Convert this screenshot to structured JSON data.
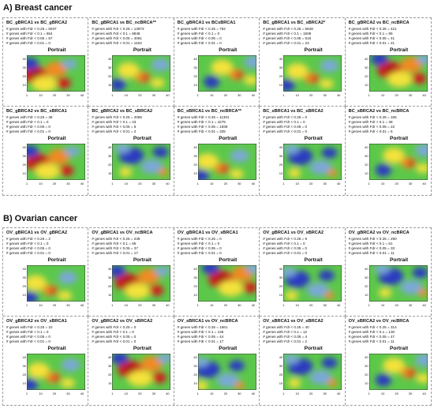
{
  "sections": [
    {
      "title": "A) Breast cancer",
      "panels": [
        {
          "title": "BC_gBRCA1 vs BC_gBRCA2",
          "stats": [
            "# genes with Fdr < 0.25 = 5037",
            "# genes with Fdr < 0.1 = 654",
            "# genes with Fdr < 0.05 = 57",
            "# genes with Fdr < 0.01 = 0"
          ],
          "label": "Portrait",
          "palette": "hot"
        },
        {
          "title": "BC_gBRCA1 vs BC_ncBRCA**",
          "stats": [
            "# genes with Fdr < 0.25 = 13973",
            "# genes with Fdr < 0.1 = 8848",
            "# genes with Fdr < 0.05 = 4061",
            "# genes with Fdr < 0.01 = 1153"
          ],
          "label": "Portrait",
          "palette": "green"
        },
        {
          "title": "BC_gBRCA1 vs BCsBRCA1",
          "stats": [
            "# genes with Fdr < 0.25 = 762",
            "# genes with Fdr < 0.1 = 0",
            "# genes with Fdr < 0.05 = 0",
            "# genes with Fdr < 0.01 = 0"
          ],
          "label": "Portrait",
          "palette": "green"
        },
        {
          "title": "BC_gBRCA1 vs BC_sBRCA2*",
          "stats": [
            "# genes with Fdr < 0.25 = 5648",
            "# genes with Fdr < 0.1 = 1509",
            "# genes with Fdr < 0.05 = 515",
            "# genes with Fdr < 0.01 = 23"
          ],
          "label": "Portrait",
          "palette": "green"
        },
        {
          "title": "BC_gBRCA2 vs BC_ncBRCA",
          "stats": [
            "# genes with Fdr < 0.25 = 421",
            "# genes with Fdr < 0.1 = 95",
            "# genes with Fdr < 0.05 = 41",
            "# genes with Fdr < 0.01 = 21"
          ],
          "label": "Portrait",
          "palette": "hot"
        },
        {
          "title": "BC_gBRCA2 vs BC_sBRCA1",
          "stats": [
            "# genes with Fdr < 0.25 = 36",
            "# genes with Fdr < 0.1 = 0",
            "# genes with Fdr < 0.05 = 0",
            "# genes with Fdr < 0.01 = 0"
          ],
          "label": "Portrait",
          "palette": "hot"
        },
        {
          "title": "BC_gBRCA2 vs BC_sBRCA2",
          "stats": [
            "# genes with Fdr < 0.25 = 2065",
            "# genes with Fdr < 0.1 = 43",
            "# genes with Fdr < 0.05 = 6",
            "# genes with Fdr < 0.01 = 2"
          ],
          "label": "Portrait",
          "palette": "cool"
        },
        {
          "title": "BC_sBRCA1 vs BC_ncBRCA**",
          "stats": [
            "# genes with Fdr < 0.25 = 11301",
            "# genes with Fdr < 0.1 = 4275",
            "# genes with Fdr < 0.05 = 1939",
            "# genes with Fdr < 0.01 = 325"
          ],
          "label": "Portrait",
          "palette": "green"
        },
        {
          "title": "BC_sBRCA1 vs BC_sBRCA2",
          "stats": [
            "# genes with Fdr < 0.25 = 0",
            "# genes with Fdr < 0.1 = 0",
            "# genes with Fdr < 0.05 = 0",
            "# genes with Fdr < 0.01 = 0"
          ],
          "label": "Portrait",
          "palette": "cool"
        },
        {
          "title": "BC_sBRCA2 vs BC_ncBRCA",
          "stats": [
            "# genes with Fdr < 0.25 = 165",
            "# genes with Fdr < 0.1 = 38",
            "# genes with Fdr < 0.05 = 22",
            "# genes with Fdr < 0.01 = 6"
          ],
          "label": "Portrait",
          "palette": "green"
        }
      ]
    },
    {
      "title": "B) Ovarian cancer",
      "panels": [
        {
          "title": "OV_gBRCA1 vs OV_gBRCA2",
          "stats": [
            "# genes with Fdr < 0.25 = 2",
            "# genes with Fdr < 0.1 = 0",
            "# genes with Fdr < 0.05 = 0",
            "# genes with Fdr < 0.01 = 0"
          ],
          "label": "Portrait",
          "palette": "green"
        },
        {
          "title": "OV_gBRCA1 vs OV_ncBRCA",
          "stats": [
            "# genes with Fdr < 0.25 = 239",
            "# genes with Fdr < 0.1 = 65",
            "# genes with Fdr < 0.05 = 37",
            "# genes with Fdr < 0.01 = 17"
          ],
          "label": "Portrait",
          "palette": "hot"
        },
        {
          "title": "OV_gBRCA1 vs OV_sBRCA1",
          "stats": [
            "# genes with Fdr < 0.25 = 0",
            "# genes with Fdr < 0.1 = 0",
            "# genes with Fdr < 0.05 = 0",
            "# genes with Fdr < 0.01 = 0"
          ],
          "label": "Portrait",
          "palette": "hot"
        },
        {
          "title": "OV_gBRCA1 vs OV_sBRCA2",
          "stats": [
            "# genes with Fdr < 0.25 = 9",
            "# genes with Fdr < 0.1 = 0",
            "# genes with Fdr < 0.05 = 0",
            "# genes with Fdr < 0.01 = 0"
          ],
          "label": "Portrait",
          "palette": "cool"
        },
        {
          "title": "OV_gBRCA2 vs OV_ncBRCA",
          "stats": [
            "# genes with Fdr < 0.25 = 290",
            "# genes with Fdr < 0.1 = 61",
            "# genes with Fdr < 0.05 = 33",
            "# genes with Fdr < 0.01 = 11"
          ],
          "label": "Portrait",
          "palette": "cool"
        },
        {
          "title": "OV_gBRCA2 vs OV_sBRCA1",
          "stats": [
            "# genes with Fdr < 0.25 = 10",
            "# genes with Fdr < 0.1 = 0",
            "# genes with Fdr < 0.05 = 0",
            "# genes with Fdr < 0.01 = 0"
          ],
          "label": "Portrait",
          "palette": "green"
        },
        {
          "title": "OV_gBRCA2 vs OV_sBRCA2",
          "stats": [
            "# genes with Fdr < 0.25 = 0",
            "# genes with Fdr < 0.1 = 0",
            "# genes with Fdr < 0.05 = 0",
            "# genes with Fdr < 0.01 = 0"
          ],
          "label": "Portrait",
          "palette": "hot"
        },
        {
          "title": "OV_sBRCA1 vs OV_ncBRCA",
          "stats": [
            "# genes with Fdr < 0.25 = 1561",
            "# genes with Fdr < 0.1 = 136",
            "# genes with Fdr < 0.05 = 44",
            "# genes with Fdr < 0.01 = 17"
          ],
          "label": "Portrait",
          "palette": "cool"
        },
        {
          "title": "OV_sBRCA1 vs OV_sBRCA2",
          "stats": [
            "# genes with Fdr < 0.25 = 40",
            "# genes with Fdr < 0.1 = 12",
            "# genes with Fdr < 0.05 = 4",
            "# genes with Fdr < 0.01 = 2"
          ],
          "label": "Portrait",
          "palette": "cool"
        },
        {
          "title": "OV_sBRCA2 vs OV_ncBRCA",
          "stats": [
            "# genes with Fdr < 0.25 = 314",
            "# genes with Fdr < 0.1 = 130",
            "# genes with Fdr < 0.05 = 47",
            "# genes with Fdr < 0.01 = 11"
          ],
          "label": "Portrait",
          "palette": "green"
        }
      ]
    }
  ],
  "axis": {
    "y_ticks": [
      "40",
      "30",
      "20",
      "10"
    ],
    "x_ticks": [
      "1",
      "10",
      "20",
      "30",
      "40"
    ]
  },
  "colors": {
    "blue": "#2b3bbf",
    "light_blue": "#7aa8d8",
    "green": "#5cc84a",
    "yellow": "#f4e23a",
    "orange": "#f08a24",
    "red": "#d01c1c",
    "dark_red": "#8a0e0e",
    "border": "#9a9a9a"
  }
}
